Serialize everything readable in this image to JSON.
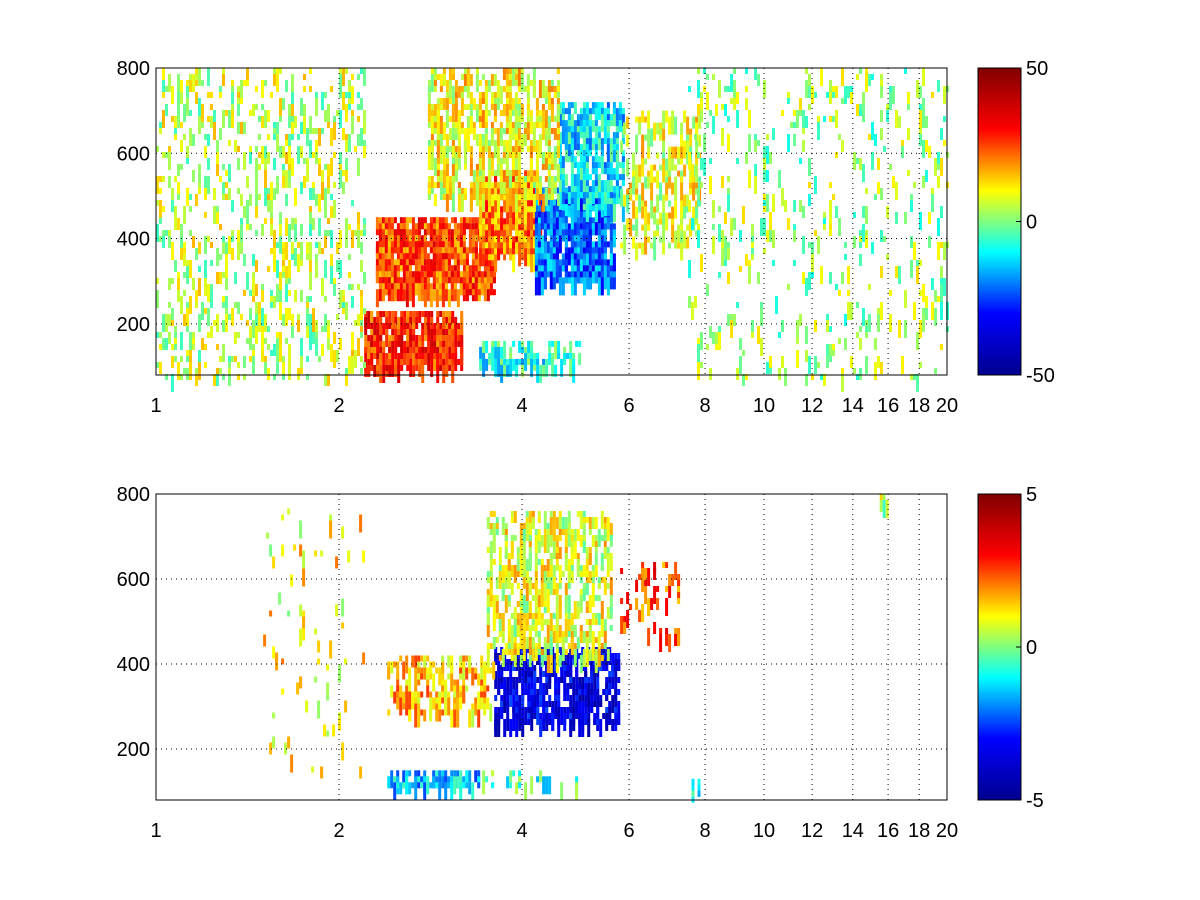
{
  "figure": {
    "background": "#ffffff",
    "colormap": "jet",
    "colormap_stops": [
      "#00008f",
      "#0000ff",
      "#00ffff",
      "#ffff00",
      "#ff0000",
      "#800000"
    ]
  },
  "chart_data": [
    {
      "type": "heatmap",
      "title": "",
      "xlabel": "",
      "ylabel": "",
      "xlim": [
        1,
        20
      ],
      "ylim": [
        80,
        800
      ],
      "xscale": "log",
      "grid": true,
      "grid_style": "dotted",
      "x_ticks": [
        1,
        2,
        4,
        6,
        8,
        10,
        12,
        14,
        16,
        18,
        20
      ],
      "x_tick_labels": [
        "1",
        "2",
        "4",
        "6",
        "8",
        "10",
        "12",
        "14",
        "16",
        "18",
        "20"
      ],
      "y_ticks": [
        200,
        400,
        600,
        800
      ],
      "y_tick_labels": [
        "200",
        "400",
        "600",
        "800"
      ],
      "colorbar": {
        "range": [
          -50,
          50
        ],
        "ticks": [
          50,
          0,
          -50
        ],
        "tick_labels": [
          "50",
          "0",
          "-50"
        ]
      },
      "regions": [
        {
          "x": [
            2.3,
            3.6
          ],
          "y": [
            280,
            450
          ],
          "value": 25,
          "density": 0.85
        },
        {
          "x": [
            3.4,
            4.3
          ],
          "y": [
            350,
            560
          ],
          "value": 20,
          "density": 0.8
        },
        {
          "x": [
            4.2,
            5.7
          ],
          "y": [
            300,
            520
          ],
          "value": -22,
          "density": 0.8
        },
        {
          "x": [
            4.6,
            5.9
          ],
          "y": [
            480,
            720
          ],
          "value": -12,
          "density": 0.65
        },
        {
          "x": [
            2.8,
            4.6
          ],
          "y": [
            500,
            800
          ],
          "value": 10,
          "density": 0.45
        },
        {
          "x": [
            2.2,
            3.2
          ],
          "y": [
            90,
            230
          ],
          "value": 28,
          "density": 0.8
        },
        {
          "x": [
            3.4,
            5.0
          ],
          "y": [
            100,
            160
          ],
          "value": -8,
          "density": 0.5
        },
        {
          "x": [
            5.8,
            7.8
          ],
          "y": [
            380,
            700
          ],
          "value": 8,
          "density": 0.35
        },
        {
          "x": [
            1.0,
            2.2
          ],
          "y": [
            80,
            800
          ],
          "value": 5,
          "density": 0.2
        },
        {
          "x": [
            7.5,
            20
          ],
          "y": [
            80,
            800
          ],
          "value": 2,
          "density": 0.1
        }
      ]
    },
    {
      "type": "heatmap",
      "title": "",
      "xlabel": "",
      "ylabel": "",
      "xlim": [
        1,
        20
      ],
      "ylim": [
        80,
        800
      ],
      "xscale": "log",
      "grid": true,
      "grid_style": "dotted",
      "x_ticks": [
        1,
        2,
        4,
        6,
        8,
        10,
        12,
        14,
        16,
        18,
        20
      ],
      "x_tick_labels": [
        "1",
        "2",
        "4",
        "6",
        "8",
        "10",
        "12",
        "14",
        "16",
        "18",
        "20"
      ],
      "y_ticks": [
        200,
        400,
        600,
        800
      ],
      "y_tick_labels": [
        "200",
        "400",
        "600",
        "800"
      ],
      "colorbar": {
        "range": [
          -5,
          5
        ],
        "ticks": [
          5,
          0,
          -5
        ],
        "tick_labels": [
          "5",
          "0",
          "-5"
        ]
      },
      "regions": [
        {
          "x": [
            3.6,
            5.8
          ],
          "y": [
            260,
            440
          ],
          "value": -3.5,
          "density": 0.65
        },
        {
          "x": [
            2.4,
            3.6
          ],
          "y": [
            280,
            420
          ],
          "value": 1.5,
          "density": 0.45
        },
        {
          "x": [
            3.5,
            5.6
          ],
          "y": [
            420,
            760
          ],
          "value": 0.8,
          "density": 0.4
        },
        {
          "x": [
            2.4,
            3.4
          ],
          "y": [
            110,
            150
          ],
          "value": -1.5,
          "density": 0.7
        },
        {
          "x": [
            3.4,
            5.0
          ],
          "y": [
            115,
            150
          ],
          "value": -0.5,
          "density": 0.25
        },
        {
          "x": [
            5.8,
            7.2
          ],
          "y": [
            460,
            640
          ],
          "value": 2.5,
          "density": 0.2
        },
        {
          "x": [
            1.5,
            2.2
          ],
          "y": [
            150,
            780
          ],
          "value": 1,
          "density": 0.04
        },
        {
          "x": [
            15.5,
            16.0
          ],
          "y": [
            780,
            800
          ],
          "value": 0.5,
          "density": 0.6
        },
        {
          "x": [
            7.6,
            7.9
          ],
          "y": [
            100,
            130
          ],
          "value": -1,
          "density": 0.5
        }
      ]
    }
  ]
}
